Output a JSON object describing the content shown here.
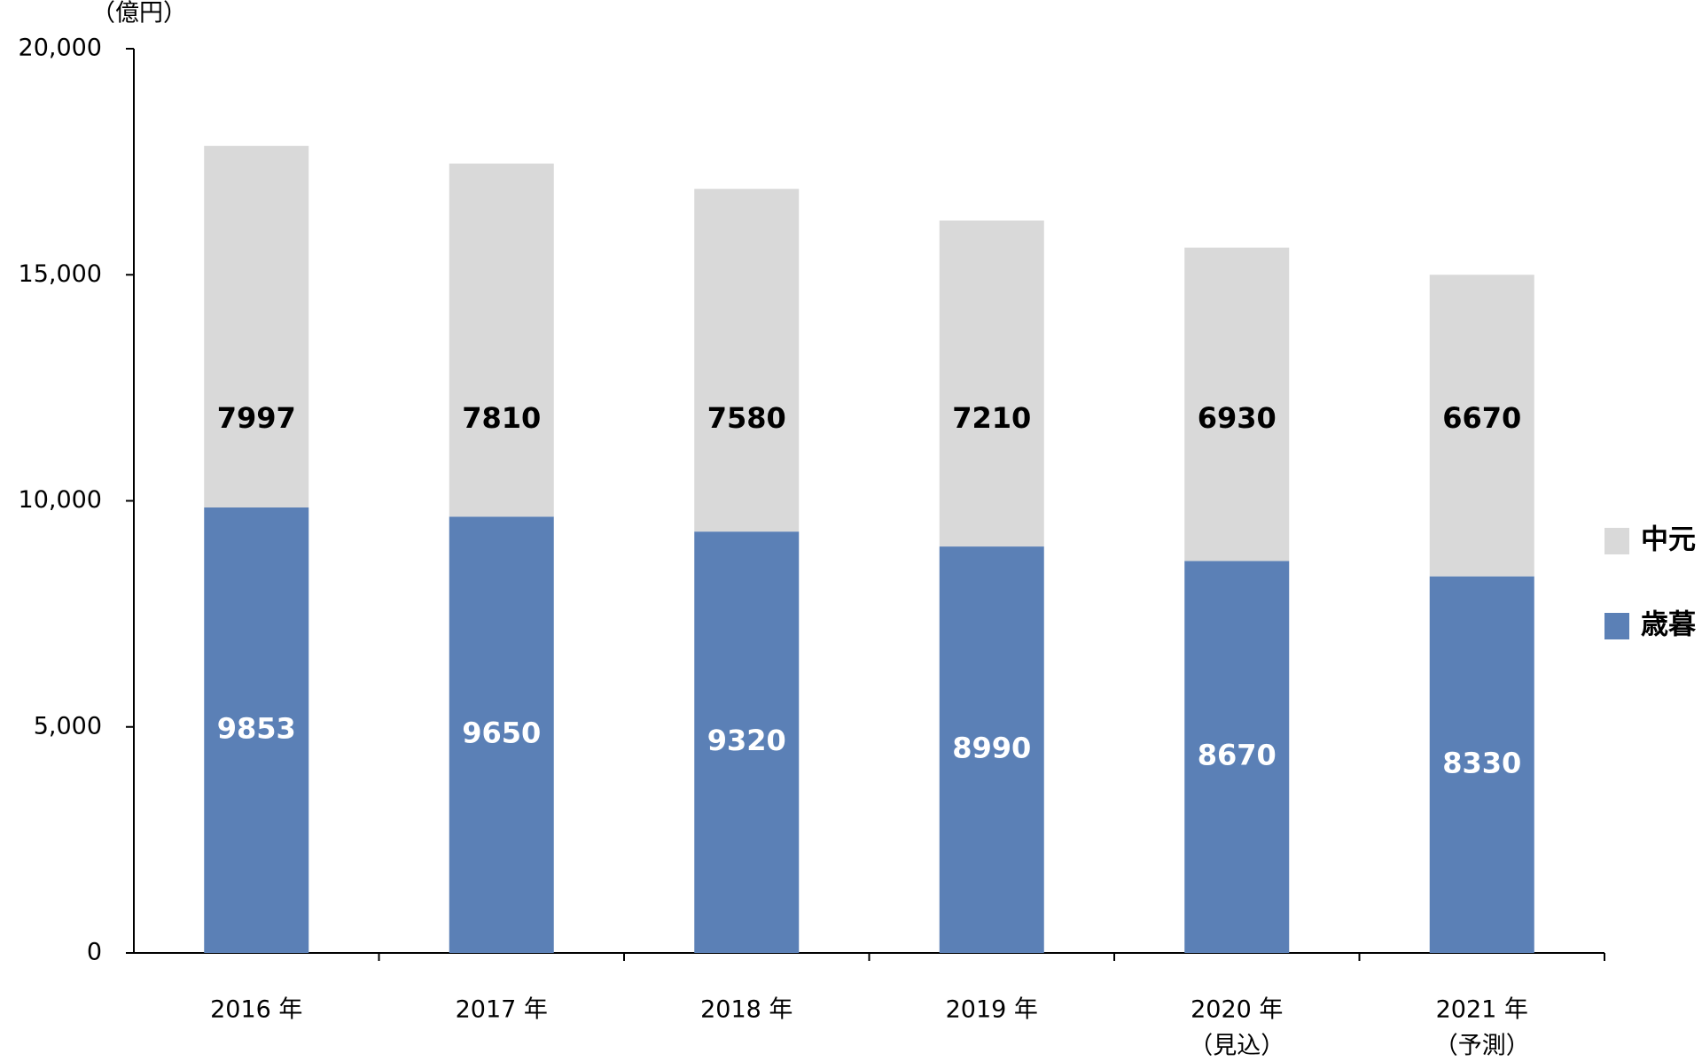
{
  "chart_data": {
    "type": "stacked-bar",
    "y_label": "（億円）",
    "categories": [
      "2016 年",
      "2017 年",
      "2018 年",
      "2019 年",
      "2020 年",
      "2021 年"
    ],
    "category_notes": [
      null,
      null,
      null,
      null,
      "（見込）",
      "（予測）"
    ],
    "series": [
      {
        "name": "歳暮",
        "color": "#5b80b6",
        "label_color": "#ffffff",
        "values": [
          9853,
          9650,
          9320,
          8990,
          8670,
          8330
        ]
      },
      {
        "name": "中元",
        "color": "#d9d9d9",
        "label_color": "#000000",
        "values": [
          7997,
          7810,
          7580,
          7210,
          6930,
          6670
        ]
      }
    ],
    "ylim": [
      0,
      20000
    ],
    "yticks": [
      0,
      {
        "value": 5000,
        "label": "5,000"
      },
      {
        "value": 10000,
        "label": "10,000"
      },
      {
        "value": 15000,
        "label": "15,000"
      },
      {
        "value": 20000,
        "label": "20,000"
      }
    ],
    "grid": false
  }
}
